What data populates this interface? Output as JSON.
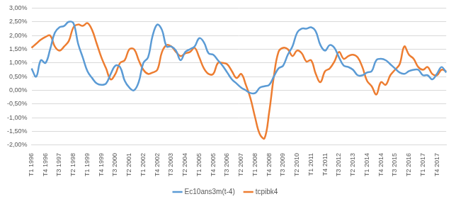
{
  "chart_data": {
    "type": "line",
    "categories": [
      "T1 1996",
      null,
      null,
      "T4 1996",
      null,
      null,
      "T3 1997",
      null,
      null,
      "T2 1998",
      null,
      null,
      "T1 1999",
      null,
      null,
      "T4 1999",
      null,
      null,
      "T3 2000",
      null,
      null,
      "T2 2001",
      null,
      null,
      "T1 2002",
      null,
      null,
      "T4 2002",
      null,
      null,
      "T3 2003",
      null,
      null,
      "T2 2004",
      null,
      null,
      "T1 2005",
      null,
      null,
      "T4 2005",
      null,
      null,
      "T3 2006",
      null,
      null,
      "T2 2007",
      null,
      null,
      "T1 2008",
      null,
      null,
      "T4 2008",
      null,
      null,
      "T3 2009",
      null,
      null,
      "T2 2010",
      null,
      null,
      "T1 2011",
      null,
      null,
      "T4 2011",
      null,
      null,
      "T3 2012",
      null,
      null,
      "T2 2013",
      null,
      null,
      "T1 2014",
      null,
      null,
      "T4 2014",
      null,
      null,
      "T3 2015",
      null,
      null,
      "T2 2016",
      null,
      null,
      "T1 2017",
      null,
      null,
      "T4 2017",
      null,
      null
    ],
    "series": [
      {
        "name": "Ec10ans3m(t-4)",
        "color": "#5b9bd5",
        "values": [
          0.8,
          0.5,
          1.1,
          1.0,
          1.5,
          2.1,
          2.3,
          2.35,
          2.5,
          2.45,
          1.7,
          1.2,
          0.7,
          0.45,
          0.25,
          0.2,
          0.25,
          0.6,
          0.9,
          0.85,
          0.35,
          0.1,
          0.0,
          0.3,
          1.0,
          1.2,
          2.0,
          2.4,
          2.2,
          1.6,
          1.6,
          1.45,
          1.1,
          1.4,
          1.5,
          1.6,
          1.9,
          1.75,
          1.35,
          1.3,
          1.1,
          0.9,
          0.65,
          0.4,
          0.25,
          0.1,
          0.0,
          -0.1,
          -0.1,
          0.1,
          0.15,
          0.2,
          0.5,
          0.8,
          0.9,
          1.3,
          1.6,
          2.1,
          2.25,
          2.25,
          2.3,
          2.15,
          1.65,
          1.45,
          1.65,
          1.55,
          1.2,
          0.9,
          0.85,
          0.75,
          0.55,
          0.55,
          0.65,
          0.7,
          1.1,
          1.15,
          1.1,
          0.95,
          0.8,
          0.65,
          0.6,
          0.7,
          0.75,
          0.75,
          0.55,
          0.55,
          0.4,
          0.6,
          0.85,
          0.65
        ]
      },
      {
        "name": "tcpibk4",
        "color": "#ed7d31",
        "values": [
          1.55,
          1.7,
          1.85,
          1.95,
          2.0,
          1.6,
          1.45,
          1.6,
          1.8,
          2.3,
          2.4,
          2.35,
          2.45,
          2.2,
          1.7,
          1.2,
          0.8,
          0.4,
          0.6,
          1.0,
          1.1,
          1.5,
          1.5,
          1.1,
          0.75,
          0.6,
          0.65,
          0.75,
          1.4,
          1.65,
          1.6,
          1.4,
          1.25,
          1.35,
          1.4,
          1.55,
          1.2,
          0.8,
          0.6,
          0.6,
          1.0,
          1.0,
          0.95,
          0.7,
          0.45,
          0.6,
          0.2,
          -0.3,
          -1.0,
          -1.6,
          -1.75,
          -0.8,
          0.5,
          1.4,
          1.55,
          1.5,
          1.25,
          1.45,
          1.35,
          1.05,
          1.1,
          0.6,
          0.3,
          0.7,
          0.8,
          1.05,
          1.4,
          1.15,
          1.25,
          1.3,
          1.2,
          0.85,
          0.35,
          0.15,
          -0.15,
          0.3,
          0.2,
          0.55,
          0.75,
          0.95,
          1.6,
          1.3,
          1.15,
          0.85,
          0.75,
          0.85,
          0.6,
          0.55,
          0.75,
          0.7
        ]
      }
    ],
    "ylim": [
      -2,
      3
    ],
    "yticks": [
      {
        "value": -2,
        "label": "-2,00%"
      },
      {
        "value": -1.5,
        "label": "-1,50%"
      },
      {
        "value": -1,
        "label": "-1,00%"
      },
      {
        "value": -0.5,
        "label": "-0,50%"
      },
      {
        "value": 0,
        "label": "0,00%"
      },
      {
        "value": 0.5,
        "label": "0,50%"
      },
      {
        "value": 1,
        "label": "1,00%"
      },
      {
        "value": 1.5,
        "label": "1,50%"
      },
      {
        "value": 2,
        "label": "2,00%"
      },
      {
        "value": 2.5,
        "label": "2,50%"
      },
      {
        "value": 3,
        "label": "3,00%"
      }
    ],
    "grid": true,
    "legend": "bottom"
  }
}
